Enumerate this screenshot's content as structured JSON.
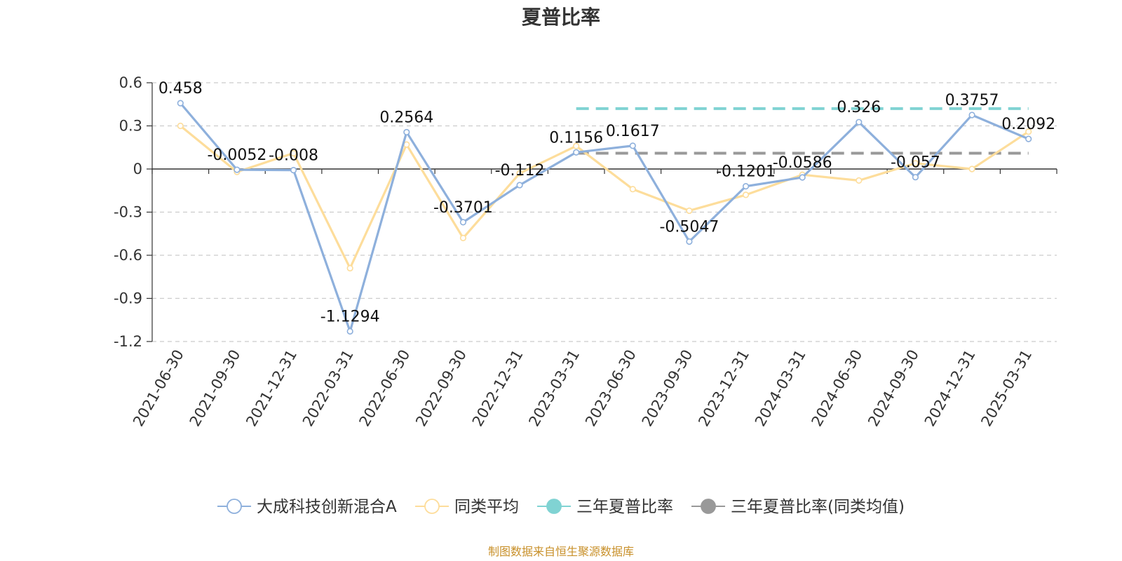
{
  "chart_data": {
    "type": "line",
    "title": "夏普比率",
    "x": [
      "2021-06-30",
      "2021-09-30",
      "2021-12-31",
      "2022-03-31",
      "2022-06-30",
      "2022-09-30",
      "2022-12-31",
      "2023-03-31",
      "2023-06-30",
      "2023-09-30",
      "2023-12-31",
      "2024-03-31",
      "2024-06-30",
      "2024-09-30",
      "2024-12-31",
      "2025-03-31"
    ],
    "ylim": [
      -1.2,
      0.6
    ],
    "yticks": [
      "0.6",
      "0.3",
      "0",
      "-0.3",
      "-0.6",
      "-0.9",
      "-1.2"
    ],
    "grid": true,
    "legend_position": "bottom",
    "series": [
      {
        "name": "大成科技创新混合A",
        "color": "#8eb0dc",
        "values": [
          0.458,
          -0.0052,
          -0.008,
          -1.1294,
          0.2564,
          -0.3701,
          -0.112,
          0.1156,
          0.1617,
          -0.5047,
          -0.1201,
          -0.0586,
          0.326,
          -0.057,
          0.3757,
          0.2092
        ],
        "labels": [
          "0.458",
          "-0.0052",
          "-0.008",
          "-1.1294",
          "0.2564",
          "-0.3701",
          "-0.112",
          "0.1156",
          "0.1617",
          "-0.5047",
          "-0.1201",
          "-0.0586",
          "0.326",
          "-0.057",
          "0.3757",
          "0.2092"
        ]
      },
      {
        "name": "同类平均",
        "color": "#fddd9b",
        "values": [
          0.3,
          -0.02,
          0.11,
          -0.69,
          0.17,
          -0.48,
          -0.03,
          0.16,
          -0.14,
          -0.29,
          -0.18,
          -0.04,
          -0.08,
          0.04,
          0.0,
          0.26
        ]
      },
      {
        "name": "三年夏普比率",
        "color": "#80d3d3",
        "reference_value": 0.42,
        "x_start": "2023-03-31",
        "x_end": "2025-03-31"
      },
      {
        "name": "三年夏普比率(同类均值)",
        "color": "#999999",
        "reference_value": 0.11,
        "x_start": "2023-03-31",
        "x_end": "2025-03-31"
      }
    ]
  },
  "footer": {
    "source": "制图数据来自恒生聚源数据库",
    "source_color": "#c8902a"
  }
}
